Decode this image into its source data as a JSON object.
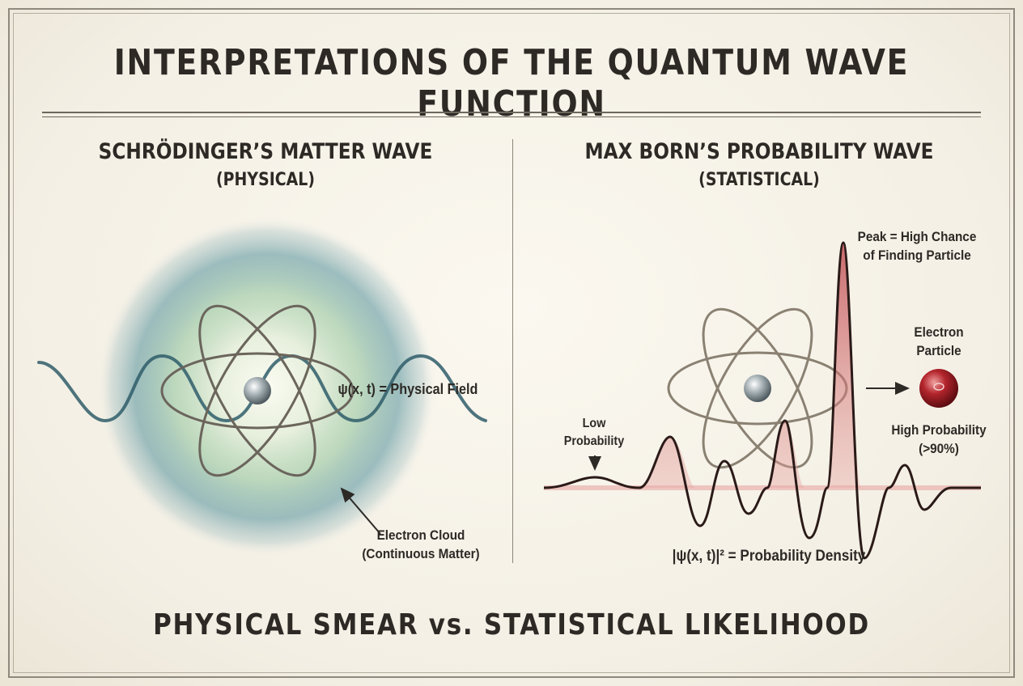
{
  "title": "INTERPRETATIONS OF THE QUANTUM WAVE FUNCTION",
  "left_panel": {
    "heading": "SCHRÖDINGER’S MATTER WAVE",
    "subheading": "(PHYSICAL)",
    "equation_label": "ψ(x, t) = Physical Field",
    "cloud_label_line1": "Electron Cloud",
    "cloud_label_line2": "(Continuous Matter)"
  },
  "right_panel": {
    "heading": "MAX BORN’S PROBABILITY WAVE",
    "subheading": "(STATISTICAL)",
    "peak_label_line1": "Peak = High Chance",
    "peak_label_line2": "of Finding Particle",
    "electron_label_line1": "Electron",
    "electron_label_line2": "Particle",
    "high_prob_line1": "High Probability",
    "high_prob_line2": "(>90%)",
    "low_prob_line1": "Low",
    "low_prob_line2": "Probability",
    "density_label": "|ψ(x, t)|² = Probability Density"
  },
  "bottom_caption": "PHYSICAL SMEAR vs. STATISTICAL LIKELIHOOD",
  "colors": {
    "cloud_teal": "#3f7c86",
    "cloud_green": "#a9cfae",
    "wave_dark": "#2f5d6a",
    "orbit": "#6b655c",
    "probability_red": "#b8333a",
    "probability_fill": "#e8a7a4",
    "ink": "#2d2a26"
  }
}
